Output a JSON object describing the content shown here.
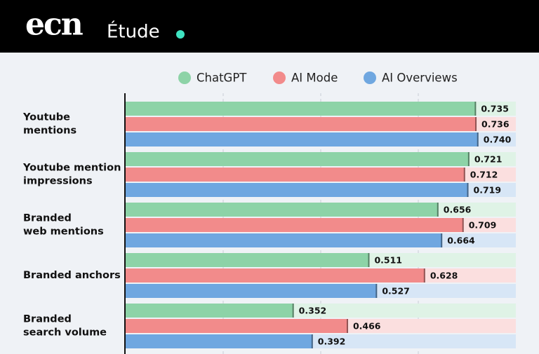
{
  "header": {
    "logo": "ecn",
    "label": "Étude"
  },
  "chart_data": {
    "type": "hbar",
    "categories": [
      "Youtube\nmentions",
      "Youtube mention\nimpressions",
      "Branded\nweb mentions",
      "Branded anchors",
      "Branded\nsearch volume"
    ],
    "series": [
      {
        "name": "ChatGPT",
        "color": "#8dd3a7",
        "values": [
          0.735,
          0.721,
          0.656,
          0.511,
          0.352
        ],
        "value_labels": [
          "0.735",
          "0.721",
          "0.656",
          "0.511",
          "0.352"
        ]
      },
      {
        "name": "AI Mode",
        "color": "#f28b8b",
        "values": [
          0.736,
          0.712,
          0.709,
          0.628,
          0.466
        ],
        "value_labels": [
          "0.736",
          "0.712",
          "0.709",
          "0.628",
          "0.466"
        ]
      },
      {
        "name": "AI Overviews",
        "color": "#6fa7e0",
        "values": [
          0.74,
          0.719,
          0.664,
          0.527,
          0.392
        ],
        "value_labels": [
          "0.740",
          "0.719",
          "0.664",
          "0.527",
          "0.392"
        ]
      }
    ],
    "xlim": [
      0,
      0.82
    ]
  }
}
